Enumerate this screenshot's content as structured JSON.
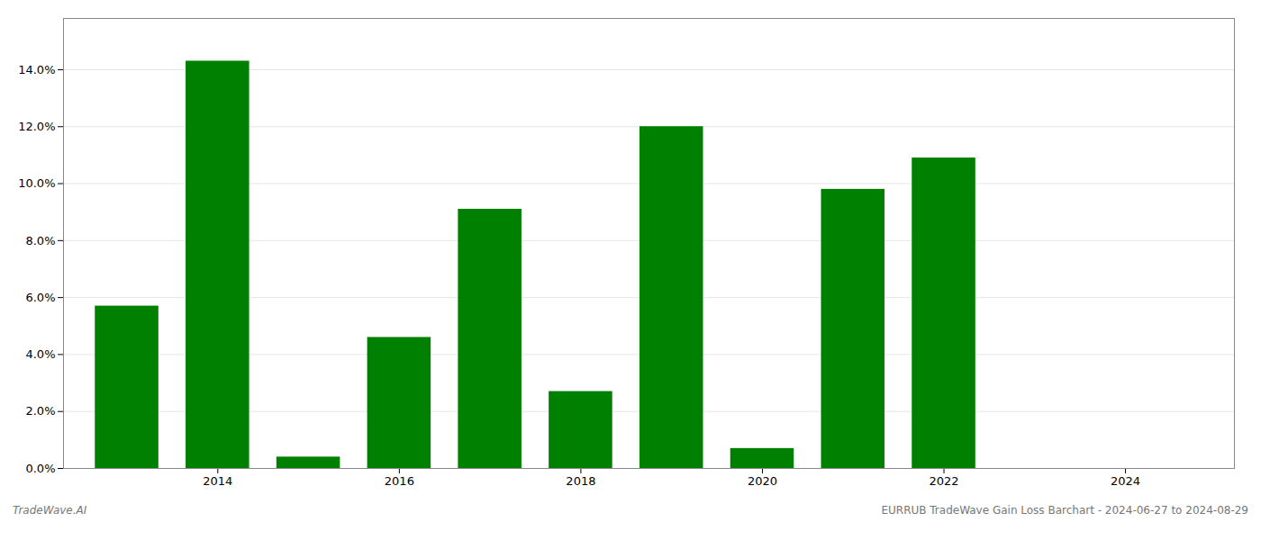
{
  "chart_data": {
    "type": "bar",
    "x": [
      2013,
      2014,
      2015,
      2016,
      2017,
      2018,
      2019,
      2020,
      2021,
      2022,
      2023
    ],
    "values": [
      0.057,
      0.143,
      0.004,
      0.046,
      0.091,
      0.027,
      0.12,
      0.007,
      0.098,
      0.109,
      0.0
    ],
    "color": "#008000",
    "xlim": [
      2012.3,
      2025.2
    ],
    "xticks": [
      2014,
      2016,
      2018,
      2020,
      2022,
      2024
    ],
    "ylim": [
      0,
      0.158
    ],
    "yticks": [
      {
        "value": 0.0,
        "label": "0.0%"
      },
      {
        "value": 0.02,
        "label": "2.0%"
      },
      {
        "value": 0.04,
        "label": "4.0%"
      },
      {
        "value": 0.06,
        "label": "6.0%"
      },
      {
        "value": 0.08,
        "label": "8.0%"
      },
      {
        "value": 0.1,
        "label": "10.0%"
      },
      {
        "value": 0.12,
        "label": "12.0%"
      },
      {
        "value": 0.14,
        "label": "14.0%"
      }
    ],
    "grid": true,
    "annotations": [
      "TradeWave.AI",
      "EURRUB TradeWave Gain Loss Barchart - 2024-06-27 to 2024-08-29"
    ]
  }
}
